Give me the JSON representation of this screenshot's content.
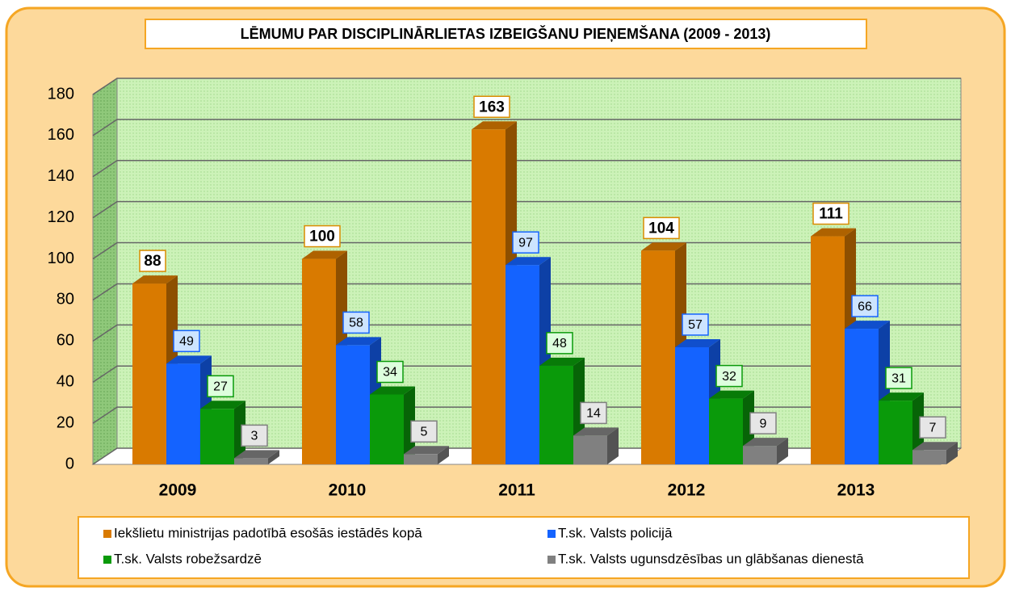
{
  "chart_data": {
    "type": "bar",
    "title": "LĒMUMU PAR DISCIPLINĀRLIETAS IZBEIGŠANU PIEŅEMŠANA (2009 - 2013)",
    "categories": [
      "2009",
      "2010",
      "2011",
      "2012",
      "2013"
    ],
    "series": [
      {
        "name": "Iekšlietu ministrijas padotībā esošās iestādēs kopā",
        "color": "#d97a00",
        "values": [
          88,
          100,
          163,
          104,
          111
        ]
      },
      {
        "name": "T.sk. Valsts policijā",
        "color": "#1463ff",
        "values": [
          49,
          58,
          97,
          57,
          66
        ]
      },
      {
        "name": "T.sk. Valsts robežsardzē",
        "color": "#0a9a0a",
        "values": [
          27,
          34,
          48,
          32,
          31
        ]
      },
      {
        "name": "T.sk. Valsts ugunsdzēsības un glābšanas dienestā",
        "color": "#808080",
        "values": [
          3,
          5,
          14,
          9,
          7
        ]
      }
    ],
    "ylim": [
      0,
      180
    ],
    "yticks": [
      0,
      20,
      40,
      60,
      80,
      100,
      120,
      140,
      160,
      180
    ],
    "grid": true,
    "legend": "bottom"
  }
}
